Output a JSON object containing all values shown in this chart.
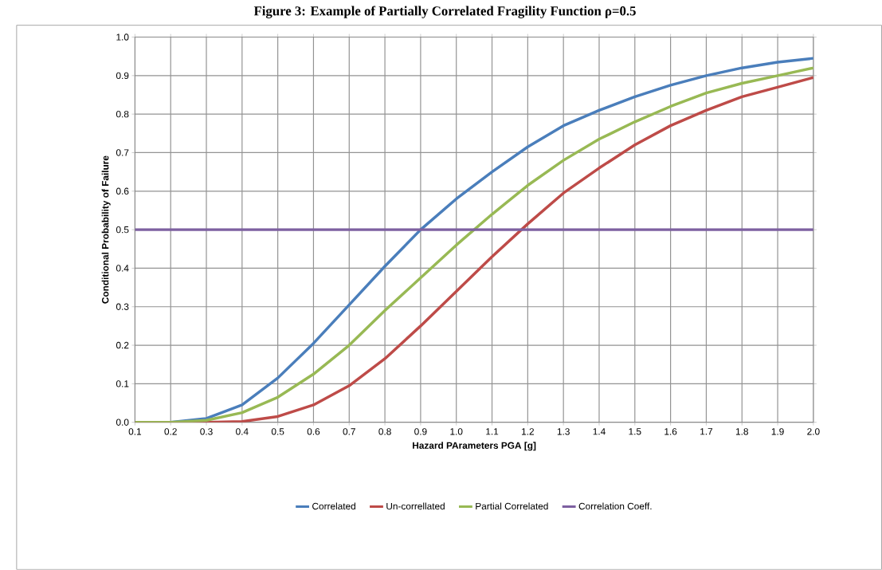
{
  "chart_data": {
    "type": "line",
    "title": "Figure 3: Example of Partially Correlated Fragility Function ρ=0.5",
    "xlabel": "Hazard PArameters  PGA [g]",
    "ylabel": "Conditional Probability of Failure",
    "x": [
      0.1,
      0.2,
      0.3,
      0.4,
      0.5,
      0.6,
      0.7,
      0.8,
      0.9,
      1.0,
      1.1,
      1.2,
      1.3,
      1.4,
      1.5,
      1.6,
      1.7,
      1.8,
      1.9,
      2.0
    ],
    "series": [
      {
        "name": "Correlated",
        "color": "#4a7ebb",
        "values": [
          0,
          0,
          0.01,
          0.045,
          0.115,
          0.205,
          0.305,
          0.405,
          0.5,
          0.58,
          0.65,
          0.715,
          0.77,
          0.81,
          0.845,
          0.875,
          0.9,
          0.92,
          0.935,
          0.945
        ]
      },
      {
        "name": "Un-correllated",
        "color": "#be4b48",
        "values": [
          0,
          0,
          0,
          0.002,
          0.015,
          0.045,
          0.095,
          0.165,
          0.25,
          0.34,
          0.43,
          0.515,
          0.595,
          0.66,
          0.72,
          0.77,
          0.81,
          0.845,
          0.87,
          0.895
        ]
      },
      {
        "name": "Partial Correlated",
        "color": "#98b954",
        "values": [
          0,
          0,
          0.005,
          0.025,
          0.065,
          0.125,
          0.2,
          0.29,
          0.375,
          0.46,
          0.54,
          0.615,
          0.68,
          0.735,
          0.78,
          0.82,
          0.855,
          0.88,
          0.9,
          0.92
        ]
      },
      {
        "name": "Correlation Coeff.",
        "color": "#7d60a0",
        "values": [
          0.5,
          0.5,
          0.5,
          0.5,
          0.5,
          0.5,
          0.5,
          0.5,
          0.5,
          0.5,
          0.5,
          0.5,
          0.5,
          0.5,
          0.5,
          0.5,
          0.5,
          0.5,
          0.5,
          0.5
        ]
      }
    ],
    "xlim": [
      0.1,
      2.0
    ],
    "xticks": [
      0.1,
      0.2,
      0.3,
      0.4,
      0.5,
      0.6,
      0.7,
      0.8,
      0.9,
      {
        "value": 1,
        "label": "1.0"
      },
      1.1,
      1.2,
      1.3,
      1.4,
      1.5,
      1.6,
      1.7,
      1.8,
      1.9,
      {
        "value": 2,
        "label": "2.0"
      }
    ],
    "ylim": [
      0,
      1
    ],
    "yticks": [
      {
        "value": 0,
        "label": "0.0"
      },
      0.1,
      0.2,
      0.3,
      0.4,
      0.5,
      0.6,
      0.7,
      0.8,
      0.9,
      {
        "value": 1,
        "label": "1.0"
      }
    ],
    "grid": true,
    "legend": "bottom",
    "marker": "none",
    "line_style": "solid"
  }
}
